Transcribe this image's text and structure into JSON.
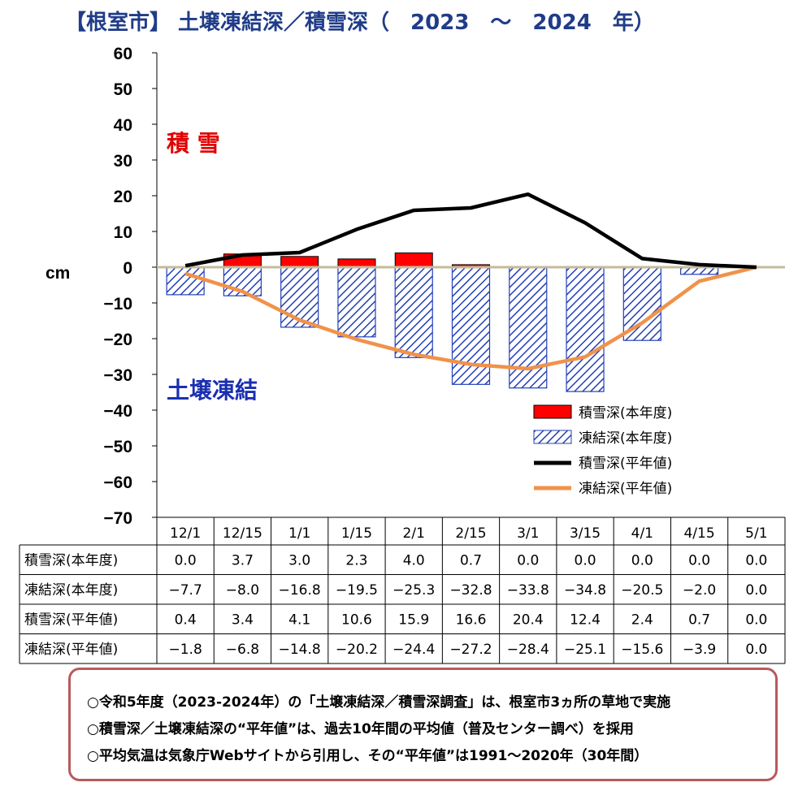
{
  "title": "【根室市】 土壌凍結深／積雪深（　2023　～　2024　年）",
  "unit_label": "cm",
  "annotation_snow": "積 雪",
  "annotation_frost": "土壌凍結",
  "colors": {
    "title": "#1f3c88",
    "snow_bar": "#ff0000",
    "frost_bar": "#2340b8",
    "snow_normal_line": "#000000",
    "frost_normal_line": "#f0924a",
    "zero_line": "#c4bb9a",
    "annotation_snow": "#e00000",
    "annotation_frost": "#1a2fb0",
    "note_border": "#b85a5a"
  },
  "chart_data": {
    "type": "bar",
    "title": "【根室市】 土壌凍結深／積雪深（　2023　～　2024　年）",
    "ylabel": "cm",
    "ylim": [
      -70,
      60
    ],
    "yticks": [
      "60",
      "50",
      "40",
      "30",
      "20",
      "10",
      "0",
      "−10",
      "−20",
      "−30",
      "−40",
      "−50",
      "−60",
      "−70"
    ],
    "ytick_values": [
      60,
      50,
      40,
      30,
      20,
      10,
      0,
      -10,
      -20,
      -30,
      -40,
      -50,
      -60,
      -70
    ],
    "categories": [
      "12/1",
      "12/15",
      "1/1",
      "1/15",
      "2/1",
      "2/15",
      "3/1",
      "3/15",
      "4/1",
      "4/15",
      "5/1"
    ],
    "legend_position": "bottom-right",
    "series": [
      {
        "name": "積雪深(本年度)",
        "kind": "bar",
        "values": [
          0.0,
          3.7,
          3.0,
          2.3,
          4.0,
          0.7,
          0.0,
          0.0,
          0.0,
          0.0,
          0.0
        ]
      },
      {
        "name": "凍結深(本年度)",
        "kind": "bar-hatched",
        "values": [
          -7.7,
          -8.0,
          -16.8,
          -19.5,
          -25.3,
          -32.8,
          -33.8,
          -34.8,
          -20.5,
          -2.0,
          0.0
        ]
      },
      {
        "name": "積雪深(平年値)",
        "kind": "line",
        "values": [
          0.4,
          3.4,
          4.1,
          10.6,
          15.9,
          16.6,
          20.4,
          12.4,
          2.4,
          0.7,
          0.0
        ]
      },
      {
        "name": "凍結深(平年値)",
        "kind": "line",
        "values": [
          -1.8,
          -6.8,
          -14.8,
          -20.2,
          -24.4,
          -27.2,
          -28.4,
          -25.1,
          -15.6,
          -3.9,
          0.0
        ]
      }
    ],
    "table": {
      "row_labels": [
        "積雪深(本年度)",
        "凍結深(本年度)",
        "積雪深(平年値)",
        "凍結深(平年値)"
      ],
      "rows": [
        [
          "0.0",
          "3.7",
          "3.0",
          "2.3",
          "4.0",
          "0.7",
          "0.0",
          "0.0",
          "0.0",
          "0.0",
          "0.0"
        ],
        [
          "−7.7",
          "−8.0",
          "−16.8",
          "−19.5",
          "−25.3",
          "−32.8",
          "−33.8",
          "−34.8",
          "−20.5",
          "−2.0",
          "0.0"
        ],
        [
          "0.4",
          "3.4",
          "4.1",
          "10.6",
          "15.9",
          "16.6",
          "20.4",
          "12.4",
          "2.4",
          "0.7",
          "0.0"
        ],
        [
          "−1.8",
          "−6.8",
          "−14.8",
          "−20.2",
          "−24.4",
          "−27.2",
          "−28.4",
          "−25.1",
          "−15.6",
          "−3.9",
          "0.0"
        ]
      ]
    }
  },
  "notes": [
    "○令和5年度（2023-2024年）の「土壌凍結深／積雪深調査」は、根室市3ヵ所の草地で実施",
    "○積雪深／土壌凍結深の“平年値”は、過去10年間の平均値（普及センター調べ）を採用",
    "○平均気温は気象庁Webサイトから引用し、その“平年値”は1991～2020年（30年間）"
  ]
}
